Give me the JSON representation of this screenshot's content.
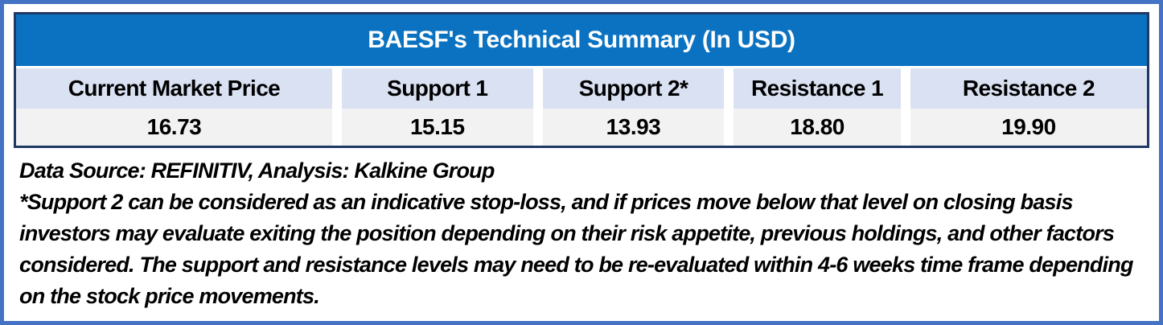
{
  "colors": {
    "outer_border": "#4472C4",
    "table_border": "#1F3864",
    "title_bg": "#0B72C1",
    "title_text": "#FFFFFF",
    "header_bg": "#D9E1F2",
    "value_bg": "#F2F2F2",
    "text": "#000000"
  },
  "table": {
    "title": "BAESF's Technical Summary (In USD)",
    "columns": [
      {
        "label": "Current Market Price",
        "value": "16.73"
      },
      {
        "label": "Support 1",
        "value": "15.15"
      },
      {
        "label": "Support 2*",
        "value": "13.93"
      },
      {
        "label": "Resistance 1",
        "value": "18.80"
      },
      {
        "label": "Resistance 2",
        "value": "19.90"
      }
    ]
  },
  "footer": {
    "source_line": "Data Source: REFINITIV, Analysis: Kalkine Group",
    "footnote": "*Support 2 can be considered as an indicative stop-loss, and if prices move below that level on closing basis investors may evaluate exiting the position depending on their risk appetite, previous holdings, and other factors considered. The support and resistance levels may need to be re-evaluated within 4-6 weeks time frame depending on the stock price movements."
  },
  "chart_data": {
    "type": "table",
    "title": "BAESF's Technical Summary (In USD)",
    "columns": [
      "Current Market Price",
      "Support 1",
      "Support 2*",
      "Resistance 1",
      "Resistance 2"
    ],
    "rows": [
      [
        16.73,
        15.15,
        13.93,
        18.8,
        19.9
      ]
    ]
  }
}
